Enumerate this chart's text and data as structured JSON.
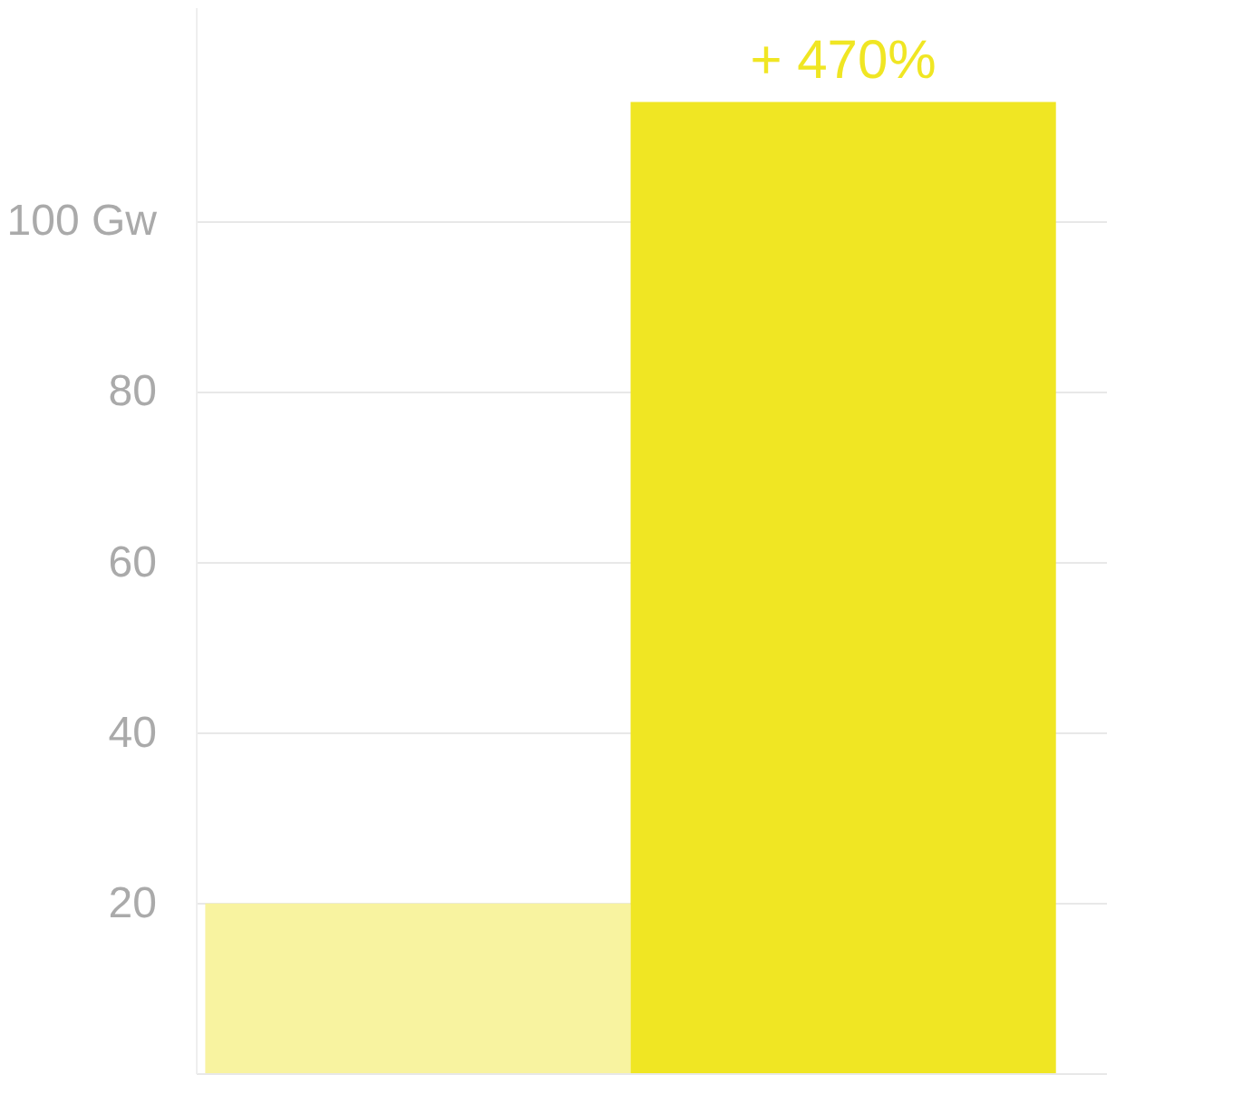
{
  "chart_data": {
    "type": "bar",
    "categories": [
      null,
      null
    ],
    "values": [
      20,
      114
    ],
    "colors": [
      "#f8f3a0",
      "#f0e623"
    ],
    "ylim": [
      0,
      125
    ],
    "yticks": [
      20,
      40,
      60,
      80,
      {
        "value": 100,
        "label": "100 Gw"
      }
    ],
    "grid": "y",
    "annotations": [
      "+ 470%"
    ]
  }
}
